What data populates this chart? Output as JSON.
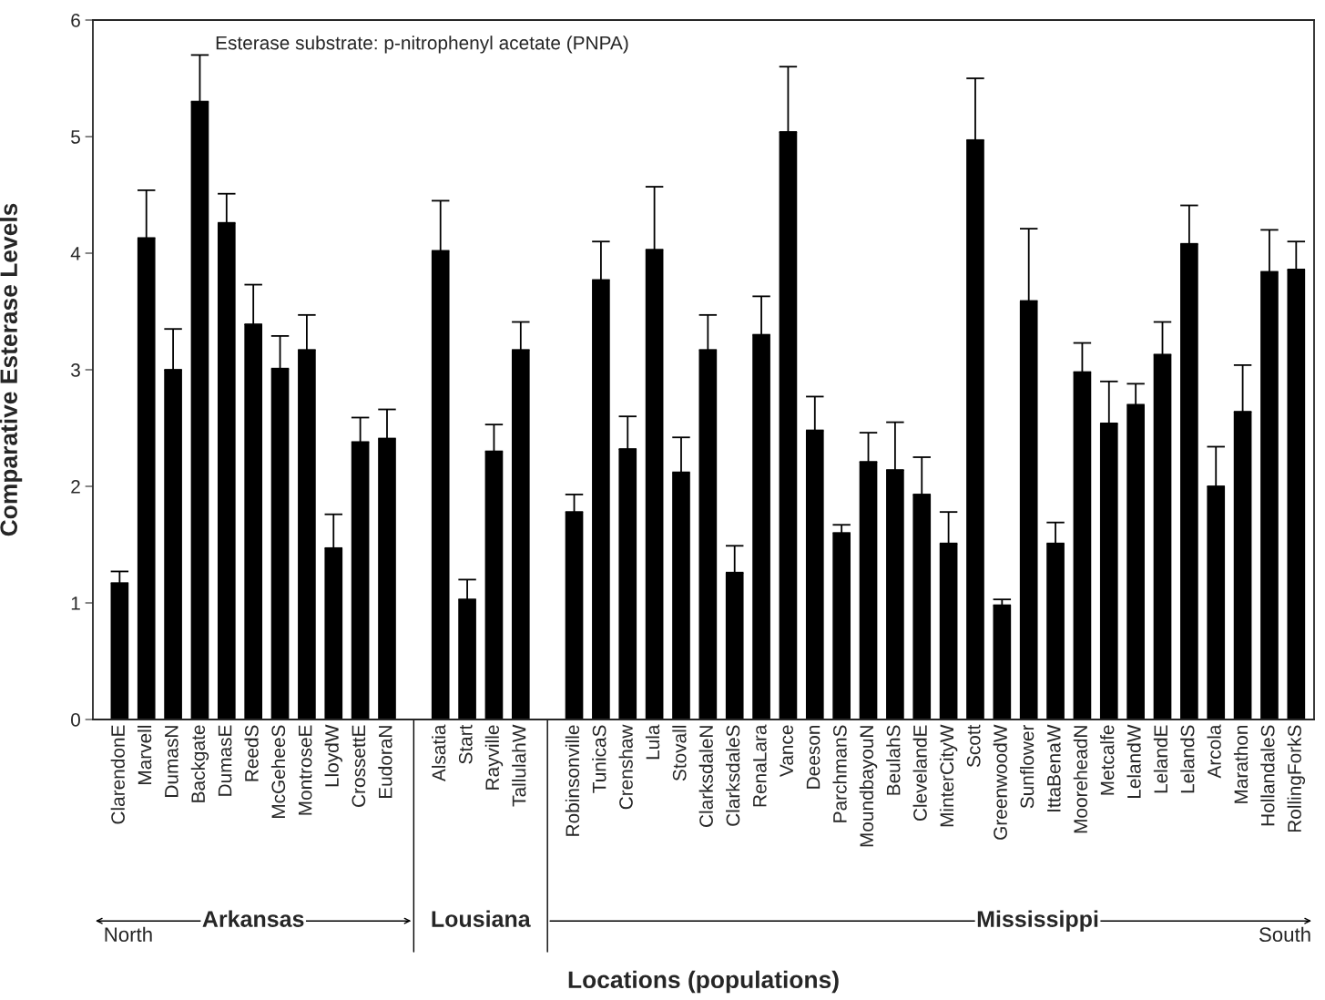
{
  "chart_data": {
    "type": "bar",
    "ylabel": "Comparative Esterase Levels",
    "subtitle": "Esterase substrate: p-nitrophenyl acetate (PNPA)",
    "annotations": [
      "Arkansas",
      "Lousiana",
      "Mississippi",
      "North",
      "South",
      "Locations (populations)"
    ],
    "categories": [
      "ClarendonE",
      "Marvell",
      "DumasN",
      "Backgate",
      "DumasE",
      "ReedS",
      "McGeheeS",
      "MontroseE",
      "LloydW",
      "CrossettE",
      "EudoraN",
      null,
      "Alsatia",
      "Start",
      "Rayville",
      "TallulahW",
      null,
      "Robinsonville",
      "TunicaS",
      "Crenshaw",
      "Lula",
      "Stovall",
      "ClarksdaleN",
      "ClarksdaleS",
      "RenaLara",
      "Vance",
      "Deeson",
      "ParchmanS",
      "MoundbayouN",
      "BeulahS",
      "ClevelandE",
      "MinterCityW",
      "Scott",
      "GreenwoodW",
      "Sunflower",
      "IttaBenaW",
      "MooreheadN",
      "Metcalfe",
      "LelandW",
      "LelandE",
      "LelandS",
      "Arcola",
      "Marathon",
      "HollandaleS",
      "RollingForkS"
    ],
    "values": [
      1.17,
      4.13,
      3.0,
      5.3,
      4.26,
      3.39,
      3.01,
      3.17,
      1.47,
      2.38,
      2.41,
      null,
      4.02,
      1.03,
      2.3,
      3.17,
      null,
      1.78,
      3.77,
      2.32,
      4.03,
      2.12,
      3.17,
      1.26,
      3.3,
      5.04,
      2.48,
      1.6,
      2.21,
      2.14,
      1.93,
      1.51,
      4.97,
      0.98,
      3.59,
      1.51,
      2.98,
      2.54,
      2.7,
      3.13,
      4.08,
      2.0,
      2.64,
      3.84,
      3.86
    ],
    "errors": [
      [
        1.17,
        1.27
      ],
      [
        4.13,
        4.54
      ],
      [
        3.0,
        3.35
      ],
      [
        5.3,
        5.7
      ],
      [
        4.26,
        4.51
      ],
      [
        3.39,
        3.73
      ],
      [
        3.01,
        3.29
      ],
      [
        3.17,
        3.47
      ],
      [
        1.47,
        1.76
      ],
      [
        2.38,
        2.59
      ],
      [
        2.41,
        2.66
      ],
      null,
      [
        4.02,
        4.45
      ],
      [
        1.03,
        1.2
      ],
      [
        2.3,
        2.53
      ],
      [
        3.17,
        3.41
      ],
      null,
      [
        1.78,
        1.93
      ],
      [
        3.77,
        4.1
      ],
      [
        2.32,
        2.6
      ],
      [
        4.03,
        4.57
      ],
      [
        2.12,
        2.42
      ],
      [
        3.17,
        3.47
      ],
      [
        1.26,
        1.49
      ],
      [
        3.3,
        3.63
      ],
      [
        5.04,
        5.6
      ],
      [
        2.48,
        2.77
      ],
      [
        1.6,
        1.67
      ],
      [
        2.21,
        2.46
      ],
      [
        2.14,
        2.55
      ],
      [
        1.93,
        2.25
      ],
      [
        1.51,
        1.78
      ],
      [
        4.97,
        5.5
      ],
      [
        0.98,
        1.03
      ],
      [
        3.59,
        4.21
      ],
      [
        1.51,
        1.69
      ],
      [
        2.98,
        3.23
      ],
      [
        2.54,
        2.9
      ],
      [
        2.7,
        2.88
      ],
      [
        3.13,
        3.41
      ],
      [
        4.08,
        4.41
      ],
      [
        2.0,
        2.34
      ],
      [
        2.64,
        3.04
      ],
      [
        3.84,
        4.2
      ],
      [
        3.86,
        4.1
      ]
    ],
    "color": "#000000",
    "ylim": [
      0,
      6
    ],
    "yticks": [
      0,
      1,
      2,
      3,
      4,
      5,
      6
    ],
    "grid": false,
    "legend": false
  }
}
